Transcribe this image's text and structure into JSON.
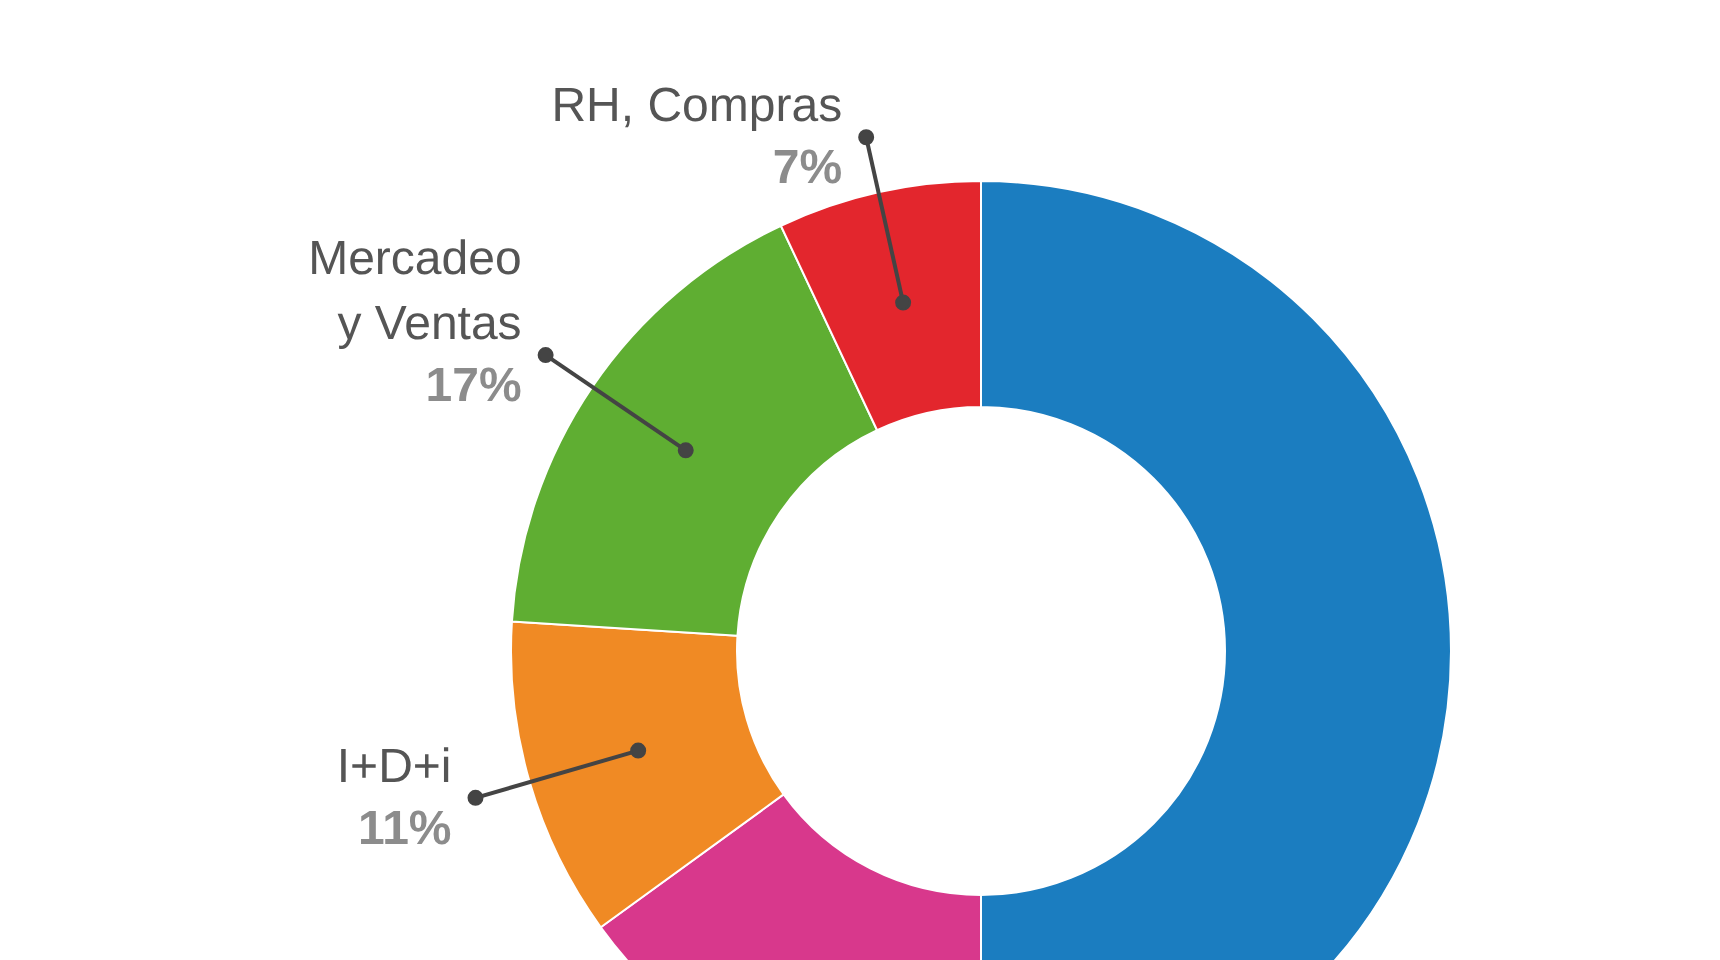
{
  "chart_data": {
    "type": "donut",
    "categories": [
      null,
      null,
      "I+D+i",
      "Mercadeo\ny Ventas",
      "RH, Compras"
    ],
    "values": [
      50,
      15,
      11,
      17,
      7
    ],
    "colors": [
      "#1b7dc0",
      "#d8388c",
      "#f08a24",
      "#5fae32",
      "#e3262d"
    ],
    "value_labels": [
      null,
      null,
      "11%",
      "17%",
      "7%"
    ]
  }
}
